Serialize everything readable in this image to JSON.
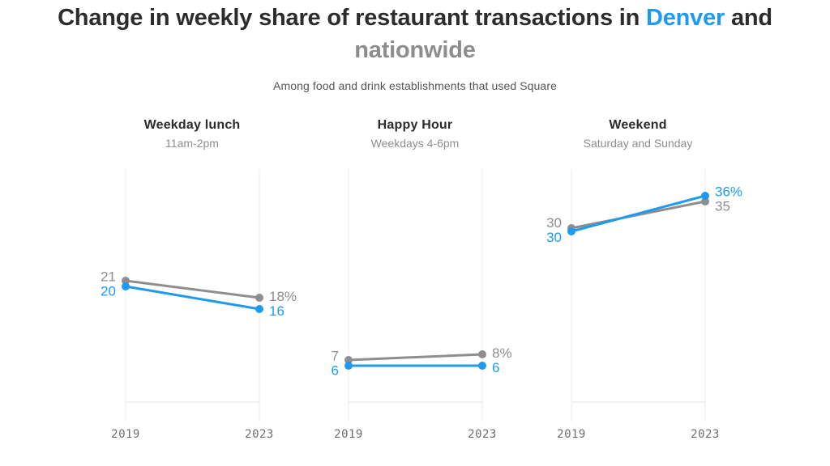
{
  "header": {
    "title_prefix": "Change in weekly share of restaurant transactions in ",
    "title_denver": "Denver",
    "title_and": " and",
    "title_nationwide": "nationwide",
    "subtitle": "Among food and drink establishments that used Square"
  },
  "colors": {
    "denver": "#1e9bf0",
    "nationwide": "#8e8e8e",
    "title_text": "#2c2c2c",
    "subtitle_text": "#565656",
    "panel_title_text": "#2b2b2b",
    "panel_subtitle_text": "#8d8d8d",
    "axis_label": "#6d6d6d",
    "gridline": "#ebebeb",
    "baseline": "#e3e3e3",
    "background": "#ffffff"
  },
  "chart_data": [
    {
      "type": "line",
      "title": "Weekday lunch",
      "subtitle": "11am-2pm",
      "x": [
        "2019",
        "2023"
      ],
      "ylim": [
        0,
        40
      ],
      "grid": "vertical-endpoints-only",
      "legend": "inline-value-labels",
      "series": [
        {
          "name": "nationwide",
          "color_key": "nationwide",
          "values": [
            21,
            18
          ],
          "labels": [
            "21",
            "18%"
          ]
        },
        {
          "name": "Denver",
          "color_key": "denver",
          "values": [
            20,
            16
          ],
          "labels": [
            "20",
            "16"
          ]
        }
      ]
    },
    {
      "type": "line",
      "title": "Happy Hour",
      "subtitle": "Weekdays 4-6pm",
      "x": [
        "2019",
        "2023"
      ],
      "ylim": [
        0,
        40
      ],
      "grid": "vertical-endpoints-only",
      "legend": "inline-value-labels",
      "series": [
        {
          "name": "nationwide",
          "color_key": "nationwide",
          "values": [
            7,
            8
          ],
          "labels": [
            "7",
            "8%"
          ]
        },
        {
          "name": "Denver",
          "color_key": "denver",
          "values": [
            6,
            6
          ],
          "labels": [
            "6",
            "6"
          ]
        }
      ]
    },
    {
      "type": "line",
      "title": "Weekend",
      "subtitle": "Saturday and Sunday",
      "x": [
        "2019",
        "2023"
      ],
      "ylim": [
        0,
        40
      ],
      "grid": "vertical-endpoints-only",
      "legend": "inline-value-labels",
      "series": [
        {
          "name": "nationwide",
          "color_key": "nationwide",
          "values": [
            30,
            35
          ],
          "labels": [
            "30",
            "35"
          ]
        },
        {
          "name": "Denver",
          "color_key": "denver",
          "values": [
            30,
            36
          ],
          "labels": [
            "30",
            "36%"
          ]
        }
      ]
    }
  ]
}
